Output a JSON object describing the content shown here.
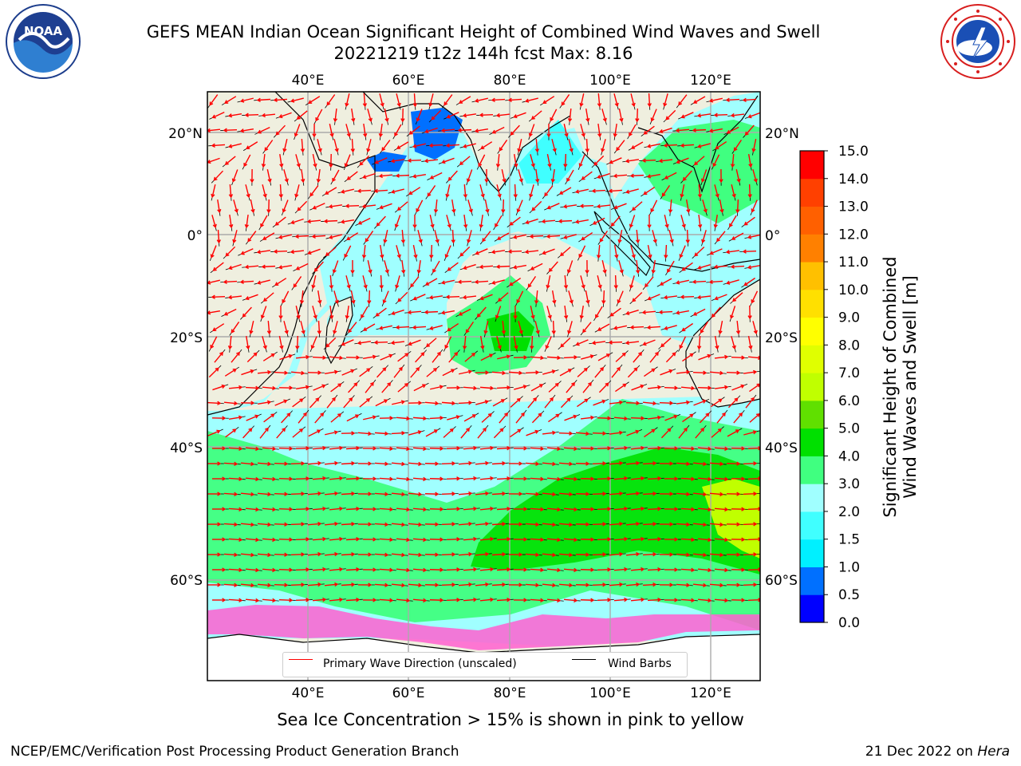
{
  "title_line1": "GEFS MEAN Indian Ocean Significant Height of Combined Wind Waves and Swell",
  "title_line2": "20221219 t12z 144h fcst   Max: 8.16",
  "ice_note": "Sea Ice Concentration > 15% is shown in pink to yellow",
  "footer_left": "NCEP/EMC/Verification Post Processing Product Generation Branch",
  "footer_date": "21 Dec 2022 on ",
  "footer_host": "Hera",
  "logos": {
    "left": "noaa-logo",
    "right": "nws-logo",
    "left_text": "NOAA"
  },
  "map": {
    "lon_labels": [
      "40°E",
      "60°E",
      "80°E",
      "100°E",
      "120°E"
    ],
    "lat_labels": [
      "20°N",
      "0°",
      "20°S",
      "40°S",
      "60°S"
    ],
    "lon_range": [
      20,
      130
    ],
    "lat_range": [
      -72,
      27
    ]
  },
  "legend": {
    "wave_label": "Primary Wave Direction (unscaled)",
    "wind_label": "Wind Barbs",
    "wave_color": "#ff0000",
    "wind_color": "#000000"
  },
  "colorbar": {
    "title": "Significant Height of Combined\nWind Waves and Swell [m]",
    "ticks": [
      "0.0",
      "0.5",
      "1.0",
      "1.5",
      "2.0",
      "3.0",
      "4.0",
      "5.0",
      "6.0",
      "7.0",
      "8.0",
      "9.0",
      "10.0",
      "11.0",
      "12.0",
      "13.0",
      "14.0",
      "15.0"
    ],
    "colors": [
      "#0000ff",
      "#0070ff",
      "#00f0ff",
      "#40ffff",
      "#a0ffff",
      "#40ff80",
      "#00e000",
      "#60e000",
      "#c0ff00",
      "#e0ff00",
      "#ffff00",
      "#ffe000",
      "#ffc000",
      "#ff8000",
      "#ff6000",
      "#ff4000",
      "#ff0000"
    ]
  },
  "chart_data": {
    "type": "heatmap",
    "title": "GEFS MEAN Indian Ocean Significant Height of Combined Wind Waves and Swell",
    "subtitle": "20221219 t12z 144h fcst   Max: 8.16",
    "x_range": [
      20,
      130
    ],
    "y_range": [
      -72,
      27
    ],
    "max_value": 8.16,
    "colorbar_range": [
      0,
      15
    ],
    "grid": true,
    "legend_position": "bottom-center"
  }
}
